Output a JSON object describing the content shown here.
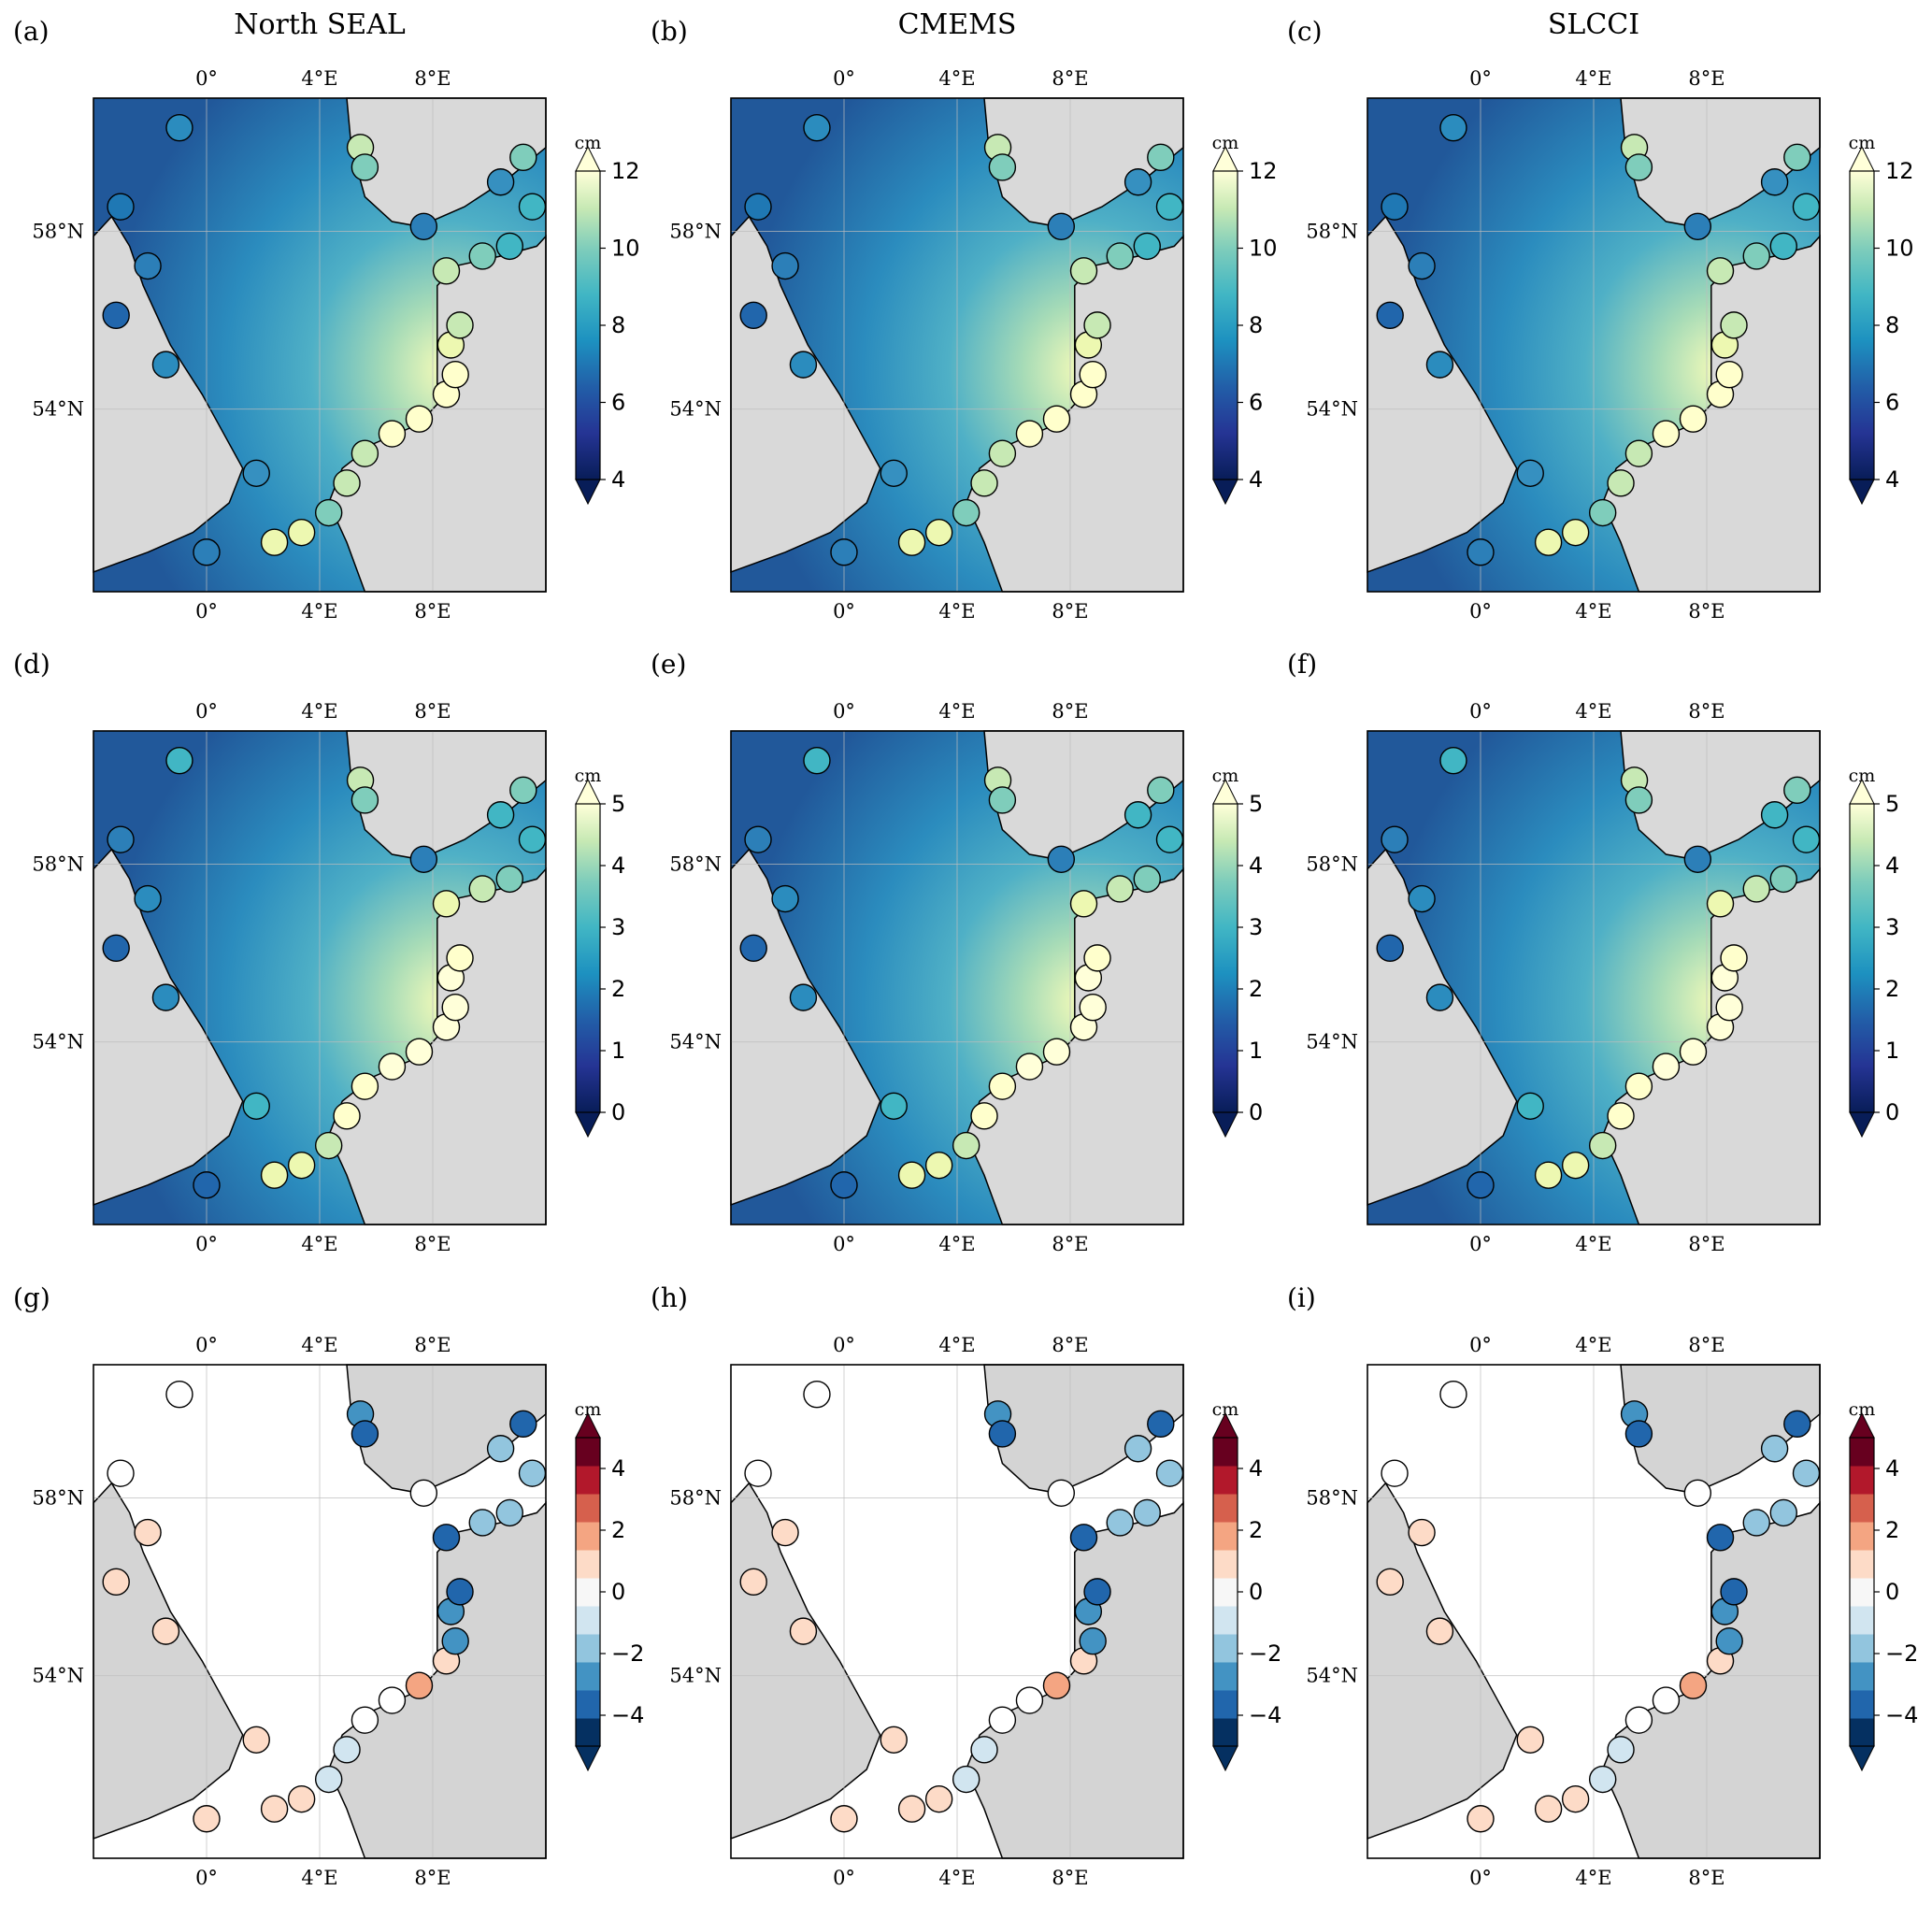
{
  "figure": {
    "panel_labels": [
      "(a)",
      "(b)",
      "(c)",
      "(d)",
      "(e)",
      "(f)",
      "(g)",
      "(h)",
      "(i)"
    ],
    "column_titles": [
      "North SEAL",
      "CMEMS",
      "SLCCI"
    ],
    "lon_ticks": [
      "0°",
      "4°E",
      "8°E"
    ],
    "lat_ticks": [
      "58°N",
      "54°N"
    ]
  },
  "chart_data": [
    {
      "row": 1,
      "type": "map",
      "variable": "sea level field with coastal tide-gauge circles",
      "colormap": "YlGnBu_r",
      "colorbar": {
        "unit": "cm",
        "min": 4,
        "max": 12,
        "ticks": [
          "4",
          "6",
          "8",
          "10",
          "12"
        ],
        "extend": "both"
      }
    },
    {
      "row": 2,
      "type": "map",
      "variable": "sea level field with coastal tide-gauge circles",
      "colormap": "YlGnBu_r",
      "colorbar": {
        "unit": "cm",
        "min": 0,
        "max": 5,
        "ticks": [
          "0",
          "1",
          "2",
          "3",
          "4",
          "5"
        ],
        "extend": "both"
      }
    },
    {
      "row": 3,
      "type": "map",
      "variable": "tide-gauge differences",
      "colormap": "RdBu_r",
      "colorbar": {
        "unit": "cm",
        "min": -5,
        "max": 5,
        "ticks": [
          "−4",
          "−2",
          "0",
          "2",
          "4"
        ],
        "extend": "both"
      }
    }
  ],
  "colors": {
    "land": "#d4d4d4",
    "border": "#000000"
  }
}
